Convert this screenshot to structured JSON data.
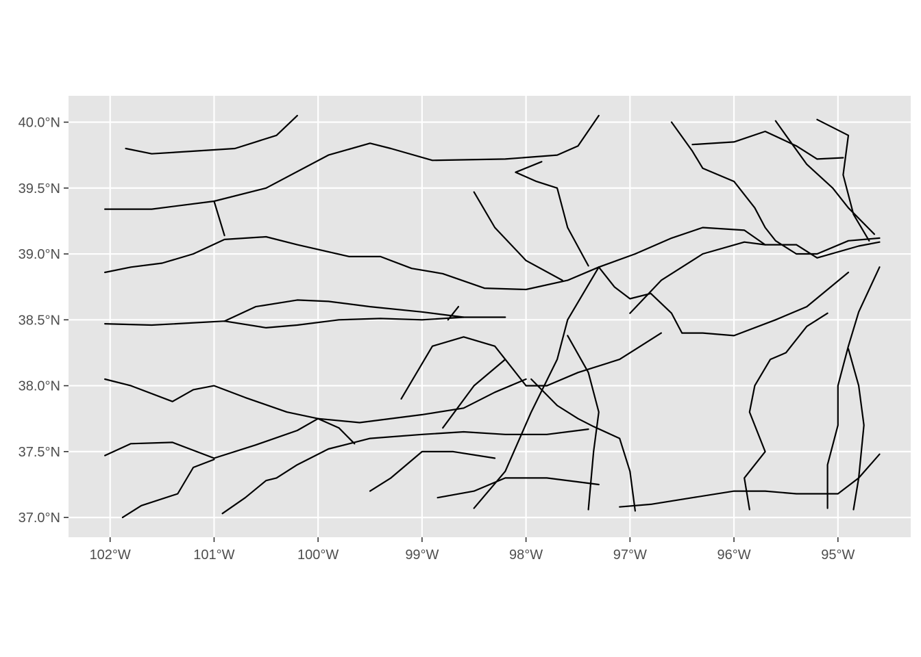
{
  "chart_data": {
    "type": "map",
    "title": "",
    "xlabel": "",
    "ylabel": "",
    "xlim": [
      -102.4,
      -94.3
    ],
    "ylim": [
      36.85,
      40.2
    ],
    "grid": true,
    "legend": "none",
    "panel_color": "#e5e5e5",
    "line_color": "#000000",
    "x_ticks": [
      {
        "value": -102,
        "label": "102°W"
      },
      {
        "value": -101,
        "label": "101°W"
      },
      {
        "value": -100,
        "label": "100°W"
      },
      {
        "value": -99,
        "label": "99°W"
      },
      {
        "value": -98,
        "label": "98°W"
      },
      {
        "value": -97,
        "label": "97°W"
      },
      {
        "value": -96,
        "label": "96°W"
      },
      {
        "value": -95,
        "label": "95°W"
      }
    ],
    "y_ticks": [
      {
        "value": 40.0,
        "label": "40.0°N"
      },
      {
        "value": 39.5,
        "label": "39.5°N"
      },
      {
        "value": 39.0,
        "label": "39.0°N"
      },
      {
        "value": 38.5,
        "label": "38.5°N"
      },
      {
        "value": 38.0,
        "label": "38.0°N"
      },
      {
        "value": 37.5,
        "label": "37.5°N"
      },
      {
        "value": 37.0,
        "label": "37.0°N"
      }
    ],
    "lines": [
      [
        [
          -102.05,
          39.34
        ],
        [
          -101.6,
          39.34
        ],
        [
          -101.0,
          39.4
        ],
        [
          -100.5,
          39.5
        ],
        [
          -99.9,
          39.75
        ],
        [
          -99.5,
          39.84
        ],
        [
          -99.3,
          39.8
        ],
        [
          -98.9,
          39.71
        ],
        [
          -98.2,
          39.72
        ],
        [
          -97.7,
          39.75
        ],
        [
          -97.5,
          39.82
        ],
        [
          -97.3,
          40.05
        ]
      ],
      [
        [
          -102.05,
          38.86
        ],
        [
          -101.8,
          38.9
        ],
        [
          -101.5,
          38.93
        ],
        [
          -101.2,
          39.0
        ],
        [
          -100.9,
          39.11
        ],
        [
          -100.5,
          39.13
        ],
        [
          -100.2,
          39.07
        ],
        [
          -99.7,
          38.98
        ],
        [
          -99.4,
          38.98
        ],
        [
          -99.1,
          38.89
        ],
        [
          -98.8,
          38.85
        ],
        [
          -98.4,
          38.74
        ],
        [
          -98.0,
          38.73
        ],
        [
          -97.6,
          38.8
        ],
        [
          -97.3,
          38.9
        ]
      ],
      [
        [
          -102.05,
          38.47
        ],
        [
          -101.6,
          38.46
        ],
        [
          -100.9,
          38.49
        ],
        [
          -100.5,
          38.44
        ],
        [
          -100.2,
          38.46
        ],
        [
          -99.8,
          38.5
        ],
        [
          -99.4,
          38.51
        ],
        [
          -99.0,
          38.5
        ],
        [
          -98.6,
          38.52
        ],
        [
          -98.2,
          38.52
        ]
      ],
      [
        [
          -100.9,
          38.49
        ],
        [
          -100.6,
          38.6
        ],
        [
          -100.2,
          38.65
        ],
        [
          -99.9,
          38.64
        ],
        [
          -99.5,
          38.6
        ],
        [
          -99.0,
          38.56
        ],
        [
          -98.6,
          38.52
        ]
      ],
      [
        [
          -102.05,
          38.05
        ],
        [
          -101.8,
          38.0
        ],
        [
          -101.4,
          37.88
        ],
        [
          -101.2,
          37.97
        ],
        [
          -101.0,
          38.0
        ],
        [
          -100.7,
          37.91
        ],
        [
          -100.3,
          37.8
        ],
        [
          -100.0,
          37.75
        ],
        [
          -99.6,
          37.72
        ],
        [
          -99.0,
          37.78
        ],
        [
          -98.6,
          37.83
        ],
        [
          -98.3,
          37.95
        ],
        [
          -98.0,
          38.05
        ]
      ],
      [
        [
          -102.05,
          37.47
        ],
        [
          -101.8,
          37.56
        ],
        [
          -101.4,
          37.57
        ],
        [
          -101.0,
          37.45
        ],
        [
          -100.6,
          37.55
        ],
        [
          -100.2,
          37.66
        ],
        [
          -100.0,
          37.75
        ]
      ],
      [
        [
          -100.0,
          37.75
        ],
        [
          -99.8,
          37.68
        ],
        [
          -99.65,
          37.56
        ]
      ],
      [
        [
          -101.0,
          39.4
        ],
        [
          -100.9,
          39.14
        ]
      ],
      [
        [
          -101.88,
          37.0
        ],
        [
          -101.7,
          37.09
        ],
        [
          -101.35,
          37.18
        ],
        [
          -101.2,
          37.38
        ],
        [
          -101.0,
          37.44
        ]
      ],
      [
        [
          -100.92,
          37.03
        ],
        [
          -100.7,
          37.15
        ],
        [
          -100.5,
          37.28
        ],
        [
          -100.4,
          37.3
        ],
        [
          -100.2,
          37.4
        ],
        [
          -99.9,
          37.52
        ],
        [
          -99.5,
          37.6
        ],
        [
          -99.0,
          37.63
        ],
        [
          -98.6,
          37.65
        ],
        [
          -98.2,
          37.63
        ],
        [
          -97.8,
          37.63
        ],
        [
          -97.4,
          37.67
        ]
      ],
      [
        [
          -98.8,
          37.68
        ],
        [
          -98.5,
          38.0
        ],
        [
          -98.2,
          38.2
        ],
        [
          -98.0,
          38.0
        ],
        [
          -97.8,
          38.0
        ],
        [
          -97.5,
          38.1
        ],
        [
          -97.1,
          38.2
        ],
        [
          -96.7,
          38.4
        ]
      ],
      [
        [
          -99.2,
          37.9
        ],
        [
          -98.9,
          38.3
        ],
        [
          -98.6,
          38.37
        ],
        [
          -98.3,
          38.3
        ],
        [
          -98.2,
          38.2
        ]
      ],
      [
        [
          -98.5,
          37.07
        ],
        [
          -98.2,
          37.35
        ],
        [
          -97.95,
          37.8
        ],
        [
          -97.7,
          38.2
        ],
        [
          -97.6,
          38.5
        ],
        [
          -97.3,
          38.9
        ]
      ],
      [
        [
          -97.6,
          38.38
        ],
        [
          -97.4,
          38.1
        ],
        [
          -97.3,
          37.8
        ],
        [
          -97.35,
          37.5
        ],
        [
          -97.4,
          37.06
        ]
      ],
      [
        [
          -97.95,
          38.05
        ],
        [
          -97.7,
          37.85
        ],
        [
          -97.5,
          37.75
        ],
        [
          -97.35,
          37.69
        ],
        [
          -97.1,
          37.6
        ],
        [
          -97.0,
          37.35
        ],
        [
          -96.95,
          37.05
        ]
      ],
      [
        [
          -97.3,
          38.9
        ],
        [
          -97.15,
          38.75
        ],
        [
          -97.0,
          38.66
        ],
        [
          -96.8,
          38.7
        ],
        [
          -96.6,
          38.55
        ],
        [
          -96.5,
          38.4
        ],
        [
          -96.3,
          38.4
        ],
        [
          -96.0,
          38.38
        ],
        [
          -95.6,
          38.5
        ],
        [
          -95.3,
          38.6
        ],
        [
          -94.9,
          38.86
        ]
      ],
      [
        [
          -97.3,
          38.9
        ],
        [
          -96.95,
          39.0
        ],
        [
          -96.6,
          39.12
        ],
        [
          -96.3,
          39.2
        ],
        [
          -95.9,
          39.18
        ],
        [
          -95.7,
          39.07
        ],
        [
          -95.4,
          39.07
        ],
        [
          -95.2,
          38.97
        ],
        [
          -94.8,
          39.06
        ],
        [
          -94.6,
          39.09
        ]
      ],
      [
        [
          -97.4,
          38.91
        ],
        [
          -97.6,
          39.2
        ],
        [
          -97.7,
          39.5
        ],
        [
          -97.9,
          39.55
        ],
        [
          -98.1,
          39.62
        ],
        [
          -97.85,
          39.7
        ]
      ],
      [
        [
          -98.5,
          39.47
        ],
        [
          -98.3,
          39.2
        ],
        [
          -98.0,
          38.95
        ],
        [
          -97.65,
          38.8
        ]
      ],
      [
        [
          -96.6,
          40.0
        ],
        [
          -96.4,
          39.78
        ],
        [
          -96.3,
          39.65
        ],
        [
          -96.0,
          39.55
        ],
        [
          -95.8,
          39.35
        ],
        [
          -95.7,
          39.2
        ],
        [
          -95.6,
          39.1
        ],
        [
          -95.4,
          39.0
        ],
        [
          -95.2,
          39.0
        ],
        [
          -94.9,
          39.1
        ],
        [
          -94.6,
          39.12
        ]
      ],
      [
        [
          -97.0,
          38.55
        ],
        [
          -96.7,
          38.8
        ],
        [
          -96.3,
          39.0
        ],
        [
          -95.9,
          39.09
        ],
        [
          -95.7,
          39.07
        ]
      ],
      [
        [
          -96.4,
          39.83
        ],
        [
          -96.0,
          39.85
        ],
        [
          -95.7,
          39.93
        ],
        [
          -95.4,
          39.82
        ],
        [
          -95.2,
          39.72
        ],
        [
          -94.95,
          39.73
        ]
      ],
      [
        [
          -95.6,
          40.01
        ],
        [
          -95.5,
          39.9
        ],
        [
          -95.3,
          39.68
        ],
        [
          -95.05,
          39.5
        ],
        [
          -94.9,
          39.35
        ],
        [
          -94.65,
          39.15
        ]
      ],
      [
        [
          -95.2,
          40.02
        ],
        [
          -94.9,
          39.9
        ],
        [
          -94.95,
          39.6
        ],
        [
          -94.85,
          39.3
        ],
        [
          -94.7,
          39.1
        ]
      ],
      [
        [
          -94.6,
          38.9
        ],
        [
          -94.8,
          38.56
        ],
        [
          -94.9,
          38.3
        ],
        [
          -95.0,
          38.0
        ],
        [
          -95.0,
          37.7
        ],
        [
          -95.1,
          37.4
        ],
        [
          -95.1,
          37.07
        ]
      ],
      [
        [
          -95.1,
          38.55
        ],
        [
          -95.3,
          38.45
        ],
        [
          -95.5,
          38.25
        ],
        [
          -95.65,
          38.2
        ],
        [
          -95.8,
          38.0
        ],
        [
          -95.85,
          37.8
        ],
        [
          -95.7,
          37.5
        ],
        [
          -95.9,
          37.3
        ],
        [
          -95.85,
          37.06
        ]
      ],
      [
        [
          -94.6,
          37.48
        ],
        [
          -94.8,
          37.3
        ],
        [
          -95.0,
          37.18
        ],
        [
          -95.4,
          37.18
        ],
        [
          -95.7,
          37.2
        ],
        [
          -96.0,
          37.2
        ],
        [
          -96.4,
          37.15
        ],
        [
          -96.8,
          37.1
        ],
        [
          -97.1,
          37.08
        ]
      ],
      [
        [
          -94.9,
          38.28
        ],
        [
          -94.8,
          38.0
        ],
        [
          -94.75,
          37.7
        ],
        [
          -94.8,
          37.3
        ],
        [
          -94.85,
          37.06
        ]
      ],
      [
        [
          -98.65,
          38.6
        ],
        [
          -98.75,
          38.5
        ]
      ],
      [
        [
          -98.85,
          37.15
        ],
        [
          -98.5,
          37.2
        ],
        [
          -98.2,
          37.3
        ],
        [
          -97.8,
          37.3
        ],
        [
          -97.5,
          37.27
        ],
        [
          -97.3,
          37.25
        ]
      ],
      [
        [
          -99.5,
          37.2
        ],
        [
          -99.3,
          37.3
        ],
        [
          -99.0,
          37.5
        ],
        [
          -98.7,
          37.5
        ],
        [
          -98.3,
          37.45
        ]
      ],
      [
        [
          -100.2,
          40.05
        ],
        [
          -100.4,
          39.9
        ],
        [
          -100.6,
          39.85
        ],
        [
          -100.8,
          39.8
        ],
        [
          -101.2,
          39.78
        ],
        [
          -101.6,
          39.76
        ],
        [
          -101.85,
          39.8
        ]
      ]
    ]
  }
}
